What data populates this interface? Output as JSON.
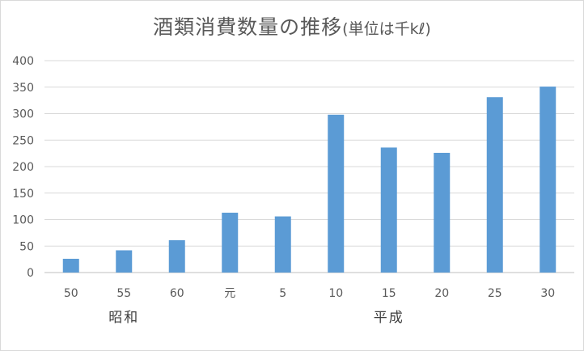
{
  "chart_data": {
    "type": "bar",
    "title": "酒類消費数量の推移",
    "title_unit": "(単位は千kℓ)",
    "categories": [
      "50",
      "55",
      "60",
      "元",
      "5",
      "10",
      "15",
      "20",
      "25",
      "30"
    ],
    "groups": [
      {
        "label": "昭和",
        "categories": [
          "50",
          "55",
          "60"
        ]
      },
      {
        "label": "平成",
        "categories": [
          "元",
          "5",
          "10",
          "15",
          "20",
          "25",
          "30"
        ]
      }
    ],
    "values": [
      26,
      42,
      61,
      113,
      106,
      298,
      236,
      226,
      331,
      351
    ],
    "ylim": [
      0,
      400
    ],
    "yticks": [
      0,
      50,
      100,
      150,
      200,
      250,
      300,
      350,
      400
    ],
    "grid": true,
    "legend": "none",
    "bar_color": "#5b9bd5",
    "grid_color": "#d9d9d9"
  }
}
